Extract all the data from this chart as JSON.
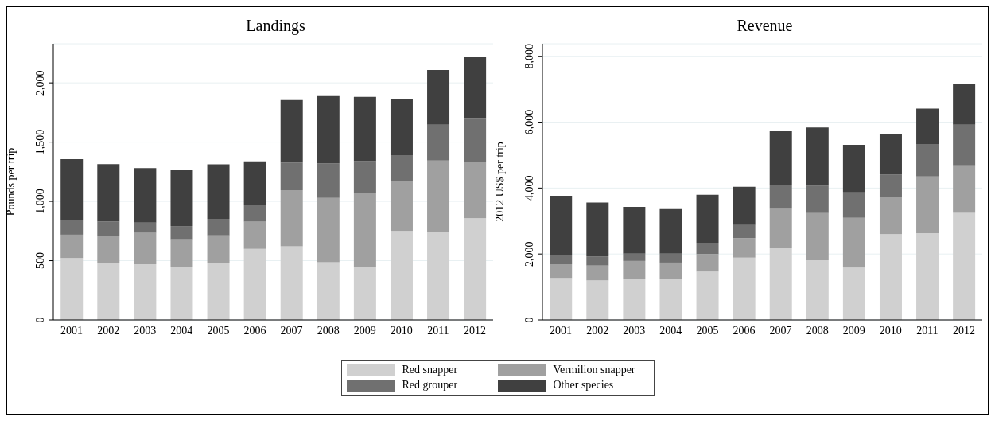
{
  "chart_data": [
    {
      "type": "bar",
      "title": "Landings",
      "ylabel": "Pounds per trip",
      "stacked": true,
      "grid": "y",
      "legend": "bottom",
      "categories": [
        "2001",
        "2002",
        "2003",
        "2004",
        "2005",
        "2006",
        "2007",
        "2008",
        "2009",
        "2010",
        "2011",
        "2012"
      ],
      "ylim": [
        0,
        2330
      ],
      "yticks": [
        0,
        {
          "value": 500,
          "label": "500"
        },
        {
          "value": 1000,
          "label": "1,000"
        },
        {
          "value": 1500,
          "label": "1,500"
        },
        {
          "value": 2000,
          "label": "2,000"
        }
      ],
      "series": [
        {
          "name": "Red snapper",
          "color": "#d0d0d0",
          "values": [
            522,
            483,
            470,
            447,
            483,
            600,
            621,
            486,
            444,
            751,
            740,
            857
          ]
        },
        {
          "name": "Vermilion snapper",
          "color": "#a0a0a0",
          "values": [
            197,
            223,
            265,
            234,
            231,
            229,
            473,
            543,
            626,
            423,
            605,
            475
          ]
        },
        {
          "name": "Red grouper",
          "color": "#707070",
          "values": [
            125,
            123,
            86,
            111,
            138,
            145,
            233,
            290,
            270,
            216,
            302,
            372
          ]
        },
        {
          "name": "Other species",
          "color": "#404040",
          "values": [
            512,
            485,
            460,
            473,
            460,
            364,
            528,
            577,
            541,
            475,
            462,
            514
          ]
        }
      ]
    },
    {
      "type": "bar",
      "title": "Revenue",
      "ylabel": "2012  US$ per trip",
      "stacked": true,
      "grid": "y",
      "categories": [
        "2001",
        "2002",
        "2003",
        "2004",
        "2005",
        "2006",
        "2007",
        "2008",
        "2009",
        "2010",
        "2011",
        "2012"
      ],
      "ylim": [
        0,
        8380
      ],
      "yticks": [
        0,
        {
          "value": 2000,
          "label": "2,000"
        },
        {
          "value": 4000,
          "label": "4,000"
        },
        {
          "value": 6000,
          "label": "6,000"
        },
        {
          "value": 8000,
          "label": "8,000"
        }
      ],
      "series": [
        {
          "color": "#d0d0d0",
          "values": [
            1270,
            1200,
            1250,
            1250,
            1470,
            1890,
            2200,
            1810,
            1590,
            2600,
            2630,
            3250
          ]
        },
        {
          "color": "#a0a0a0",
          "values": [
            420,
            450,
            540,
            490,
            530,
            590,
            1190,
            1430,
            1510,
            1130,
            1720,
            1440
          ]
        },
        {
          "color": "#707070",
          "values": [
            290,
            280,
            220,
            270,
            340,
            400,
            700,
            830,
            770,
            680,
            990,
            1230
          ]
        },
        {
          "color": "#404040",
          "values": [
            1790,
            1630,
            1420,
            1380,
            1460,
            1160,
            1650,
            1770,
            1440,
            1240,
            1070,
            1240
          ]
        }
      ]
    }
  ]
}
